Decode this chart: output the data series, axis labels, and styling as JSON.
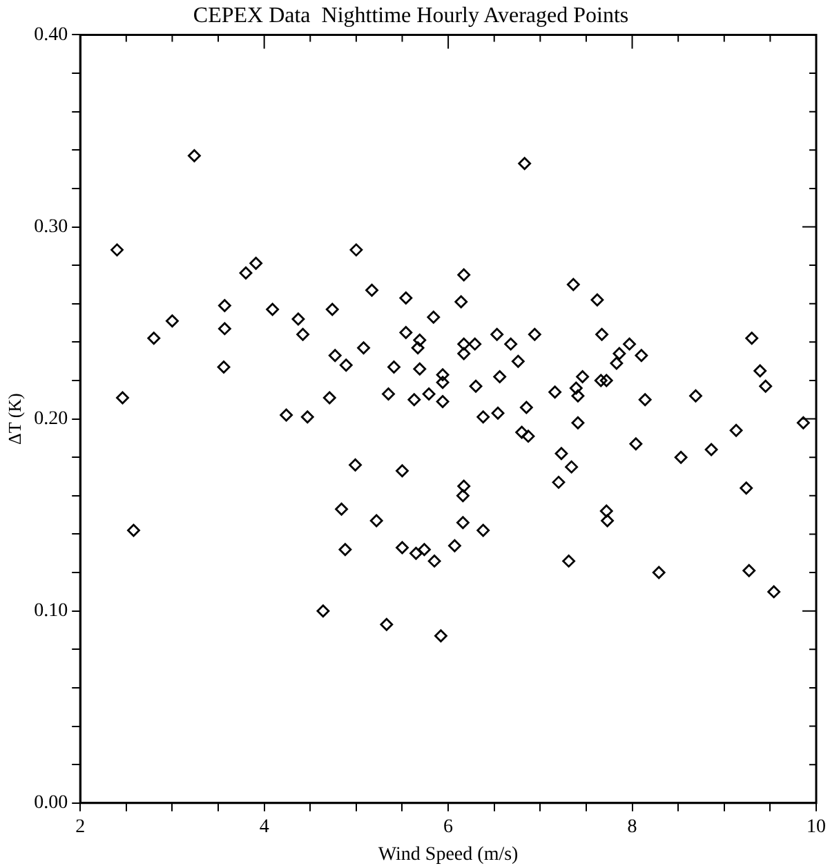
{
  "chart_data": {
    "type": "scatter",
    "title": "CEPEX Data  Nighttime Hourly Averaged Points",
    "xlabel": "Wind Speed (m/s)",
    "ylabel": "ΔT (K)",
    "xlim": [
      2,
      10
    ],
    "ylim": [
      0,
      0.4
    ],
    "xticks": [
      2,
      {
        "value": 2.5,
        "label": null
      },
      {
        "value": 3,
        "label": null
      },
      {
        "value": 3.5,
        "label": null
      },
      4,
      {
        "value": 4.5,
        "label": null
      },
      {
        "value": 5,
        "label": null
      },
      {
        "value": 5.5,
        "label": null
      },
      6,
      {
        "value": 6.5,
        "label": null
      },
      {
        "value": 7,
        "label": null
      },
      {
        "value": 7.5,
        "label": null
      },
      8,
      {
        "value": 8.5,
        "label": null
      },
      {
        "value": 9,
        "label": null
      },
      {
        "value": 9.5,
        "label": null
      },
      10
    ],
    "yticks": [
      {
        "value": 0,
        "label": "0.00"
      },
      {
        "value": 0.02,
        "label": null
      },
      {
        "value": 0.04,
        "label": null
      },
      {
        "value": 0.06,
        "label": null
      },
      {
        "value": 0.08,
        "label": null
      },
      {
        "value": 0.1,
        "label": "0.10"
      },
      {
        "value": 0.12,
        "label": null
      },
      {
        "value": 0.14,
        "label": null
      },
      {
        "value": 0.16,
        "label": null
      },
      {
        "value": 0.18,
        "label": null
      },
      {
        "value": 0.2,
        "label": "0.20"
      },
      {
        "value": 0.22,
        "label": null
      },
      {
        "value": 0.24,
        "label": null
      },
      {
        "value": 0.26,
        "label": null
      },
      {
        "value": 0.28,
        "label": null
      },
      {
        "value": 0.3,
        "label": "0.30"
      },
      {
        "value": 0.32,
        "label": null
      },
      {
        "value": 0.34,
        "label": null
      },
      {
        "value": 0.36,
        "label": null
      },
      {
        "value": 0.38,
        "label": null
      },
      {
        "value": 0.4,
        "label": "0.40"
      }
    ],
    "grid": false,
    "legend": false,
    "marker": "diamond",
    "series": [
      {
        "color": "#000000",
        "x": [
          2.4,
          3.24,
          2.46,
          2.58,
          2.8,
          3.0,
          3.56,
          3.57,
          3.57,
          3.8,
          3.91,
          4.09,
          4.24,
          4.37,
          4.42,
          4.47,
          4.64,
          4.71,
          4.74,
          4.77,
          6.83,
          5.0,
          6.17,
          7.36,
          5.17,
          5.54,
          6.14,
          5.84,
          5.54,
          5.69,
          5.67,
          5.08,
          4.89,
          5.41,
          5.69,
          5.94,
          5.94,
          6.17,
          6.17,
          6.29,
          6.53,
          6.68,
          6.94,
          6.76,
          6.56,
          6.3,
          5.35,
          5.63,
          5.79,
          5.94,
          6.38,
          6.54,
          6.85,
          7.16,
          7.39,
          7.41,
          7.46,
          7.41,
          6.8,
          6.87,
          7.23,
          7.34,
          7.2,
          4.99,
          5.5,
          6.17,
          6.16,
          4.84,
          5.22,
          6.16,
          6.38,
          4.88,
          5.5,
          5.65,
          5.74,
          5.85,
          6.07,
          7.31,
          5.33,
          5.92,
          7.62,
          7.67,
          7.97,
          7.86,
          8.1,
          7.83,
          7.66,
          7.72,
          8.14,
          8.04,
          7.72,
          7.73,
          8.29,
          8.53,
          8.69,
          8.86,
          9.13,
          9.3,
          9.39,
          9.45,
          9.24,
          9.27,
          9.54,
          9.86
        ],
        "values": [
          0.288,
          0.337,
          0.211,
          0.142,
          0.242,
          0.251,
          0.227,
          0.247,
          0.259,
          0.276,
          0.281,
          0.257,
          0.202,
          0.252,
          0.244,
          0.201,
          0.1,
          0.211,
          0.257,
          0.233,
          0.333,
          0.288,
          0.275,
          0.27,
          0.267,
          0.263,
          0.261,
          0.253,
          0.245,
          0.241,
          0.237,
          0.237,
          0.228,
          0.227,
          0.226,
          0.223,
          0.219,
          0.239,
          0.234,
          0.239,
          0.244,
          0.239,
          0.244,
          0.23,
          0.222,
          0.217,
          0.213,
          0.21,
          0.213,
          0.209,
          0.201,
          0.203,
          0.206,
          0.214,
          0.216,
          0.212,
          0.222,
          0.198,
          0.193,
          0.191,
          0.182,
          0.175,
          0.167,
          0.176,
          0.173,
          0.165,
          0.16,
          0.153,
          0.147,
          0.146,
          0.142,
          0.132,
          0.133,
          0.13,
          0.132,
          0.126,
          0.134,
          0.126,
          0.093,
          0.087,
          0.262,
          0.244,
          0.239,
          0.234,
          0.233,
          0.229,
          0.22,
          0.22,
          0.21,
          0.187,
          0.152,
          0.147,
          0.12,
          0.18,
          0.212,
          0.184,
          0.194,
          0.242,
          0.225,
          0.217,
          0.164,
          0.121,
          0.11,
          0.198
        ]
      }
    ]
  }
}
